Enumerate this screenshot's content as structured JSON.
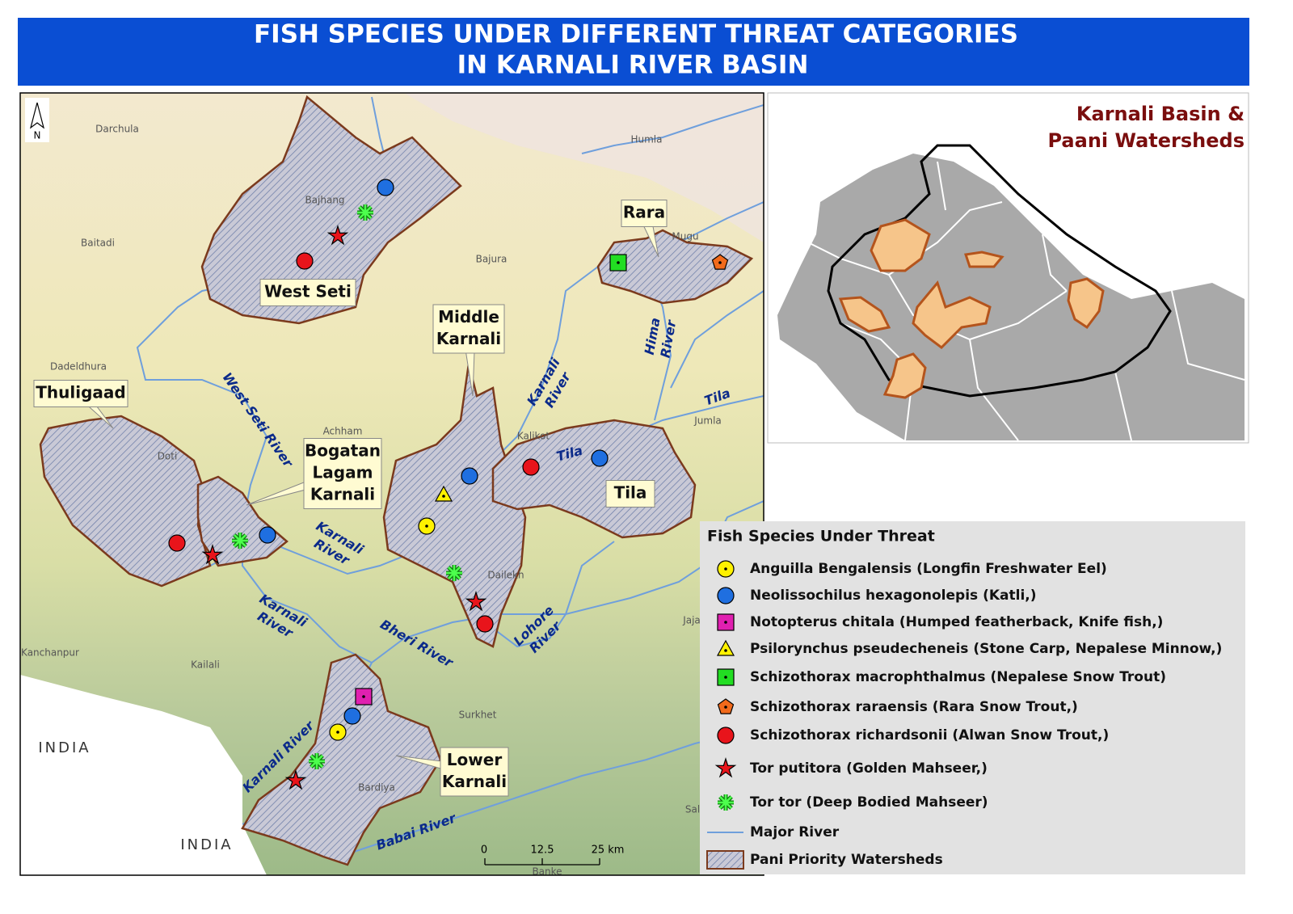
{
  "header": {
    "title": [
      "FISH SPECIES UNDER DIFFERENT THREAT CATEGORIES",
      "IN KARNALI RIVER BASIN"
    ]
  },
  "map": {
    "north_arrow": "N",
    "places": [
      "Darchula",
      "Humla",
      "Bajhang",
      "Baitadi",
      "Bajura",
      "Mugu",
      "Dadeldhura",
      "Achham",
      "Kalikot",
      "Jumla",
      "Doti",
      "Dailekh",
      "Jaja",
      "Kanchanpur",
      "Kailali",
      "Surkhet",
      "Bardiya",
      "Sal",
      "Banke"
    ],
    "countries": [
      "INDIA",
      "INDIA"
    ],
    "rivers": [
      [
        "West Seti River"
      ],
      [
        "Karnali",
        "River"
      ],
      [
        "Hima",
        "River"
      ],
      [
        "Tila"
      ],
      [
        "Tila"
      ],
      [
        "Karnali",
        "River"
      ],
      [
        "Karnali",
        "River"
      ],
      [
        "Bheri River"
      ],
      [
        "Lohore",
        "River"
      ],
      [
        "Karnali River"
      ],
      [
        "Babai River"
      ]
    ],
    "watersheds": [
      [
        "West Seti"
      ],
      [
        "Rara"
      ],
      [
        "Middle",
        "Karnali"
      ],
      [
        "Thuligaad"
      ],
      [
        "Bogatan",
        "Lagam",
        "Karnali"
      ],
      [
        "Tila"
      ],
      [
        "Lower",
        "Karnali"
      ]
    ],
    "scale_bar": [
      "0",
      "12.5",
      "25 km"
    ]
  },
  "inset": {
    "title": [
      "Karnali Basin &",
      "Paani Watersheds"
    ]
  },
  "legend": {
    "title": "Fish Species Under Threat",
    "items": [
      "Anguilla Bengalensis (Longfin Freshwater Eel)",
      "Neolissochilus hexagonolepis (Katli,)",
      "Notopterus chitala (Humped featherback, Knife fish,)",
      "Psilorynchus pseudecheneis (Stone Carp, Nepalese Minnow,)",
      "Schizothorax macrophthalmus (Nepalese Snow Trout)",
      "Schizothorax raraensis (Rara Snow Trout,)",
      "Schizothorax richardsonii  (Alwan Snow Trout,)",
      "Tor putitora (Golden Mahseer,)",
      "Tor tor (Deep Bodied Mahseer)",
      "Major River",
      "Pani Priority Watersheds"
    ]
  }
}
